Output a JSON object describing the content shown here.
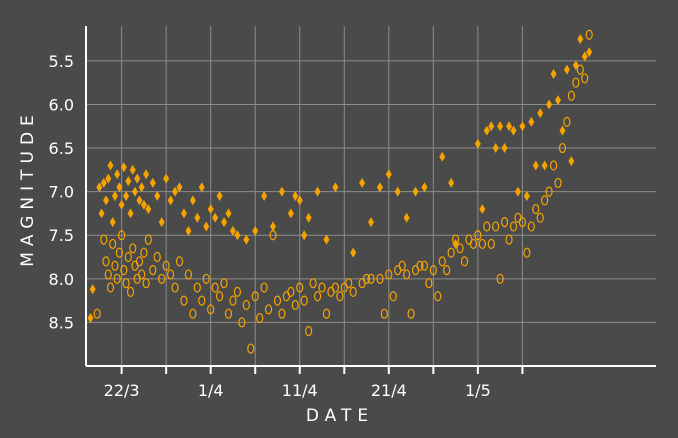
{
  "chart_data": {
    "type": "scatter",
    "title": "",
    "xlabel": "DATE",
    "ylabel": "MAGNITUDE",
    "y_inverted": true,
    "ylim": [
      9.0,
      5.1
    ],
    "xlim": [
      "2019-03-18",
      "2019-05-21"
    ],
    "x_ticks": [
      "22/3",
      "1/4",
      "11/4",
      "21/4",
      "1/5"
    ],
    "x_tick_dates": [
      "2019-03-22",
      "2019-04-01",
      "2019-04-11",
      "2019-04-21",
      "2019-05-01"
    ],
    "y_ticks": [
      5.5,
      6.0,
      6.5,
      7.0,
      7.5,
      8.0,
      8.5
    ],
    "grid": true,
    "legend": "none",
    "colors": {
      "background": "#4a4a4a",
      "marker": "#f5a300",
      "grid": "#8c8c8c",
      "axis": "#ffffff"
    },
    "series": [
      {
        "marker": "filled-diamond",
        "points": [
          [
            "2019-03-18 12:00",
            8.45
          ],
          [
            "2019-03-18 18:00",
            8.12
          ],
          [
            "2019-03-19 12:00",
            6.95
          ],
          [
            "2019-03-19 18:00",
            7.25
          ],
          [
            "2019-03-20 00:00",
            6.9
          ],
          [
            "2019-03-20 06:00",
            7.1
          ],
          [
            "2019-03-20 12:00",
            6.85
          ],
          [
            "2019-03-20 18:00",
            6.7
          ],
          [
            "2019-03-21 00:00",
            7.35
          ],
          [
            "2019-03-21 06:00",
            7.05
          ],
          [
            "2019-03-21 12:00",
            6.8
          ],
          [
            "2019-03-21 18:00",
            6.95
          ],
          [
            "2019-03-22 00:00",
            7.15
          ],
          [
            "2019-03-22 06:00",
            6.72
          ],
          [
            "2019-03-22 12:00",
            7.05
          ],
          [
            "2019-03-22 18:00",
            6.88
          ],
          [
            "2019-03-23 00:00",
            7.25
          ],
          [
            "2019-03-23 06:00",
            6.75
          ],
          [
            "2019-03-23 12:00",
            7.0
          ],
          [
            "2019-03-23 18:00",
            6.85
          ],
          [
            "2019-03-24 00:00",
            7.1
          ],
          [
            "2019-03-24 06:00",
            6.95
          ],
          [
            "2019-03-24 12:00",
            7.15
          ],
          [
            "2019-03-24 18:00",
            6.8
          ],
          [
            "2019-03-25 00:00",
            7.2
          ],
          [
            "2019-03-25 12:00",
            6.9
          ],
          [
            "2019-03-26 00:00",
            7.05
          ],
          [
            "2019-03-26 12:00",
            7.35
          ],
          [
            "2019-03-27 00:00",
            6.85
          ],
          [
            "2019-03-27 12:00",
            7.1
          ],
          [
            "2019-03-28 00:00",
            7.0
          ],
          [
            "2019-03-28 12:00",
            6.95
          ],
          [
            "2019-03-29 00:00",
            7.25
          ],
          [
            "2019-03-29 12:00",
            7.45
          ],
          [
            "2019-03-30 00:00",
            7.1
          ],
          [
            "2019-03-30 12:00",
            7.3
          ],
          [
            "2019-03-31 00:00",
            6.95
          ],
          [
            "2019-03-31 12:00",
            7.4
          ],
          [
            "2019-04-01 00:00",
            7.2
          ],
          [
            "2019-04-01 12:00",
            7.3
          ],
          [
            "2019-04-02 00:00",
            7.05
          ],
          [
            "2019-04-02 12:00",
            7.35
          ],
          [
            "2019-04-03 00:00",
            7.25
          ],
          [
            "2019-04-03 12:00",
            7.45
          ],
          [
            "2019-04-04 00:00",
            7.5
          ],
          [
            "2019-04-05 00:00",
            7.55
          ],
          [
            "2019-04-06 00:00",
            7.45
          ],
          [
            "2019-04-07 00:00",
            7.05
          ],
          [
            "2019-04-08 00:00",
            7.4
          ],
          [
            "2019-04-09 00:00",
            7.0
          ],
          [
            "2019-04-10 00:00",
            7.25
          ],
          [
            "2019-04-10 12:00",
            7.05
          ],
          [
            "2019-04-11 00:00",
            7.1
          ],
          [
            "2019-04-11 12:00",
            7.5
          ],
          [
            "2019-04-12 00:00",
            7.3
          ],
          [
            "2019-04-13 00:00",
            7.0
          ],
          [
            "2019-04-14 00:00",
            7.55
          ],
          [
            "2019-04-15 00:00",
            6.95
          ],
          [
            "2019-04-17 00:00",
            7.7
          ],
          [
            "2019-04-18 00:00",
            6.9
          ],
          [
            "2019-04-19 00:00",
            7.35
          ],
          [
            "2019-04-20 00:00",
            6.95
          ],
          [
            "2019-04-21 00:00",
            6.8
          ],
          [
            "2019-04-22 00:00",
            7.0
          ],
          [
            "2019-04-23 00:00",
            7.3
          ],
          [
            "2019-04-24 00:00",
            7.0
          ],
          [
            "2019-04-25 00:00",
            6.95
          ],
          [
            "2019-04-27 00:00",
            6.6
          ],
          [
            "2019-04-28 00:00",
            6.9
          ],
          [
            "2019-04-28 12:00",
            7.6
          ],
          [
            "2019-05-01 00:00",
            6.45
          ],
          [
            "2019-05-01 12:00",
            7.2
          ],
          [
            "2019-05-02 00:00",
            6.3
          ],
          [
            "2019-05-02 12:00",
            6.25
          ],
          [
            "2019-05-03 00:00",
            6.5
          ],
          [
            "2019-05-03 12:00",
            6.25
          ],
          [
            "2019-05-04 00:00",
            6.5
          ],
          [
            "2019-05-04 12:00",
            6.25
          ],
          [
            "2019-05-05 00:00",
            6.3
          ],
          [
            "2019-05-05 12:00",
            7.0
          ],
          [
            "2019-05-06 00:00",
            6.25
          ],
          [
            "2019-05-06 12:00",
            7.05
          ],
          [
            "2019-05-07 00:00",
            6.2
          ],
          [
            "2019-05-07 12:00",
            6.7
          ],
          [
            "2019-05-08 00:00",
            6.1
          ],
          [
            "2019-05-08 12:00",
            6.7
          ],
          [
            "2019-05-09 00:00",
            6.0
          ],
          [
            "2019-05-09 12:00",
            5.65
          ],
          [
            "2019-05-10 00:00",
            5.95
          ],
          [
            "2019-05-10 12:00",
            6.3
          ],
          [
            "2019-05-11 00:00",
            5.6
          ],
          [
            "2019-05-11 12:00",
            6.65
          ],
          [
            "2019-05-12 00:00",
            5.55
          ],
          [
            "2019-05-12 12:00",
            5.25
          ],
          [
            "2019-05-13 00:00",
            5.45
          ],
          [
            "2019-05-13 12:00",
            5.4
          ]
        ]
      },
      {
        "marker": "hollow-ellipse",
        "points": [
          [
            "2019-03-19 06:00",
            8.4
          ],
          [
            "2019-03-20 00:00",
            7.55
          ],
          [
            "2019-03-20 06:00",
            7.8
          ],
          [
            "2019-03-20 12:00",
            7.95
          ],
          [
            "2019-03-20 18:00",
            8.1
          ],
          [
            "2019-03-21 00:00",
            7.6
          ],
          [
            "2019-03-21 06:00",
            7.85
          ],
          [
            "2019-03-21 12:00",
            8.0
          ],
          [
            "2019-03-21 18:00",
            7.7
          ],
          [
            "2019-03-22 00:00",
            7.5
          ],
          [
            "2019-03-22 06:00",
            7.9
          ],
          [
            "2019-03-22 12:00",
            8.05
          ],
          [
            "2019-03-22 18:00",
            7.75
          ],
          [
            "2019-03-23 00:00",
            8.15
          ],
          [
            "2019-03-23 06:00",
            7.65
          ],
          [
            "2019-03-23 12:00",
            7.85
          ],
          [
            "2019-03-23 18:00",
            8.0
          ],
          [
            "2019-03-24 00:00",
            7.8
          ],
          [
            "2019-03-24 06:00",
            7.95
          ],
          [
            "2019-03-24 12:00",
            7.7
          ],
          [
            "2019-03-24 18:00",
            8.05
          ],
          [
            "2019-03-25 00:00",
            7.55
          ],
          [
            "2019-03-25 12:00",
            7.9
          ],
          [
            "2019-03-26 00:00",
            7.75
          ],
          [
            "2019-03-26 12:00",
            8.0
          ],
          [
            "2019-03-27 00:00",
            7.85
          ],
          [
            "2019-03-27 12:00",
            7.95
          ],
          [
            "2019-03-28 00:00",
            8.1
          ],
          [
            "2019-03-28 12:00",
            7.8
          ],
          [
            "2019-03-29 00:00",
            8.25
          ],
          [
            "2019-03-29 12:00",
            7.95
          ],
          [
            "2019-03-30 00:00",
            8.4
          ],
          [
            "2019-03-30 12:00",
            8.1
          ],
          [
            "2019-03-31 00:00",
            8.25
          ],
          [
            "2019-03-31 12:00",
            8.0
          ],
          [
            "2019-04-01 00:00",
            8.35
          ],
          [
            "2019-04-01 12:00",
            8.1
          ],
          [
            "2019-04-02 00:00",
            8.2
          ],
          [
            "2019-04-02 12:00",
            8.05
          ],
          [
            "2019-04-03 00:00",
            8.4
          ],
          [
            "2019-04-03 12:00",
            8.25
          ],
          [
            "2019-04-04 00:00",
            8.15
          ],
          [
            "2019-04-04 12:00",
            8.5
          ],
          [
            "2019-04-05 00:00",
            8.3
          ],
          [
            "2019-04-05 12:00",
            8.8
          ],
          [
            "2019-04-06 00:00",
            8.2
          ],
          [
            "2019-04-06 12:00",
            8.45
          ],
          [
            "2019-04-07 00:00",
            8.1
          ],
          [
            "2019-04-07 12:00",
            8.35
          ],
          [
            "2019-04-08 00:00",
            7.5
          ],
          [
            "2019-04-08 12:00",
            8.25
          ],
          [
            "2019-04-09 00:00",
            8.4
          ],
          [
            "2019-04-09 12:00",
            8.2
          ],
          [
            "2019-04-10 00:00",
            8.15
          ],
          [
            "2019-04-10 12:00",
            8.3
          ],
          [
            "2019-04-11 00:00",
            8.1
          ],
          [
            "2019-04-11 12:00",
            8.25
          ],
          [
            "2019-04-12 00:00",
            8.6
          ],
          [
            "2019-04-12 12:00",
            8.05
          ],
          [
            "2019-04-13 00:00",
            8.2
          ],
          [
            "2019-04-13 12:00",
            8.1
          ],
          [
            "2019-04-14 00:00",
            8.4
          ],
          [
            "2019-04-14 12:00",
            8.15
          ],
          [
            "2019-04-15 00:00",
            8.1
          ],
          [
            "2019-04-15 12:00",
            8.2
          ],
          [
            "2019-04-16 00:00",
            8.1
          ],
          [
            "2019-04-16 12:00",
            8.05
          ],
          [
            "2019-04-17 00:00",
            8.15
          ],
          [
            "2019-04-18 00:00",
            8.05
          ],
          [
            "2019-04-18 12:00",
            8.0
          ],
          [
            "2019-04-19 00:00",
            8.0
          ],
          [
            "2019-04-20 00:00",
            8.0
          ],
          [
            "2019-04-20 12:00",
            8.4
          ],
          [
            "2019-04-21 00:00",
            7.95
          ],
          [
            "2019-04-21 12:00",
            8.2
          ],
          [
            "2019-04-22 00:00",
            7.9
          ],
          [
            "2019-04-22 12:00",
            7.85
          ],
          [
            "2019-04-23 00:00",
            7.95
          ],
          [
            "2019-04-23 12:00",
            8.4
          ],
          [
            "2019-04-24 00:00",
            7.9
          ],
          [
            "2019-04-24 12:00",
            7.85
          ],
          [
            "2019-04-25 00:00",
            7.85
          ],
          [
            "2019-04-25 12:00",
            8.05
          ],
          [
            "2019-04-26 00:00",
            7.9
          ],
          [
            "2019-04-26 12:00",
            8.2
          ],
          [
            "2019-04-27 00:00",
            7.8
          ],
          [
            "2019-04-27 12:00",
            7.9
          ],
          [
            "2019-04-28 00:00",
            7.7
          ],
          [
            "2019-04-28 12:00",
            7.55
          ],
          [
            "2019-04-29 00:00",
            7.65
          ],
          [
            "2019-04-29 12:00",
            7.8
          ],
          [
            "2019-04-30 00:00",
            7.55
          ],
          [
            "2019-04-30 12:00",
            7.6
          ],
          [
            "2019-05-01 00:00",
            7.5
          ],
          [
            "2019-05-01 12:00",
            7.6
          ],
          [
            "2019-05-02 00:00",
            7.4
          ],
          [
            "2019-05-02 12:00",
            7.6
          ],
          [
            "2019-05-03 00:00",
            7.4
          ],
          [
            "2019-05-03 12:00",
            8.0
          ],
          [
            "2019-05-04 00:00",
            7.35
          ],
          [
            "2019-05-04 12:00",
            7.55
          ],
          [
            "2019-05-05 00:00",
            7.4
          ],
          [
            "2019-05-05 12:00",
            7.3
          ],
          [
            "2019-05-06 00:00",
            7.35
          ],
          [
            "2019-05-06 12:00",
            7.7
          ],
          [
            "2019-05-07 00:00",
            7.4
          ],
          [
            "2019-05-07 12:00",
            7.2
          ],
          [
            "2019-05-08 00:00",
            7.3
          ],
          [
            "2019-05-08 12:00",
            7.1
          ],
          [
            "2019-05-09 00:00",
            7.0
          ],
          [
            "2019-05-09 12:00",
            6.7
          ],
          [
            "2019-05-10 00:00",
            6.9
          ],
          [
            "2019-05-10 12:00",
            6.5
          ],
          [
            "2019-05-11 00:00",
            6.2
          ],
          [
            "2019-05-11 12:00",
            5.9
          ],
          [
            "2019-05-12 00:00",
            5.75
          ],
          [
            "2019-05-12 12:00",
            5.6
          ],
          [
            "2019-05-13 00:00",
            5.7
          ],
          [
            "2019-05-13 12:00",
            5.2
          ]
        ]
      }
    ]
  }
}
